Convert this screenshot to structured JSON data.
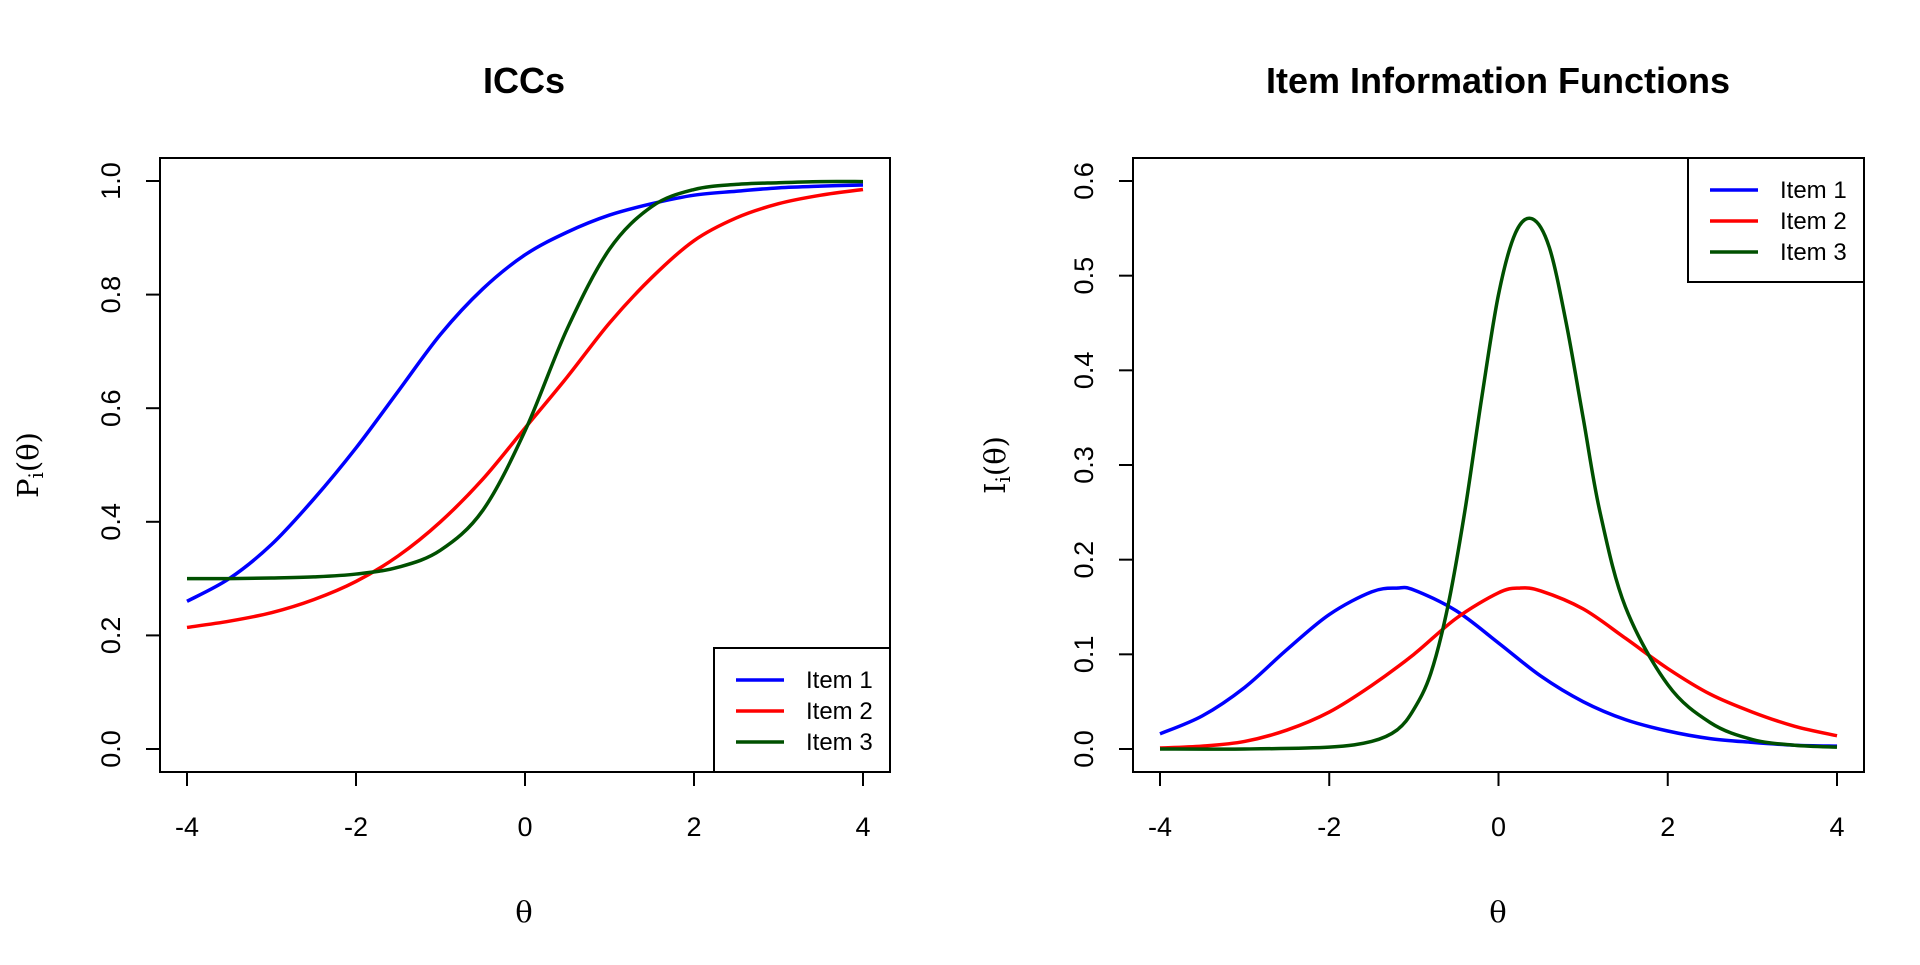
{
  "chart_data": [
    {
      "type": "line",
      "title": "ICCs",
      "xlabel": "θ",
      "ylabel": {
        "main": "P",
        "sub": "i",
        "rest": "(θ)"
      },
      "xlim": [
        -4,
        4
      ],
      "ylim": [
        0,
        1
      ],
      "xticks": [
        -4,
        -2,
        0,
        2,
        4
      ],
      "yticks": [
        0.0,
        0.2,
        0.4,
        0.6,
        0.8,
        1.0
      ],
      "xtick_labels": [
        "-4",
        "-2",
        "0",
        "2",
        "4"
      ],
      "ytick_labels": [
        "0.0",
        "0.2",
        "0.4",
        "0.6",
        "0.8",
        "1.0"
      ],
      "grid": false,
      "legend_position": "bottom-right",
      "series": [
        {
          "name": "Item 1",
          "color": "#0000ff",
          "x": [
            -4,
            -3.5,
            -3,
            -2.5,
            -2,
            -1.5,
            -1,
            -0.5,
            0,
            0.5,
            1,
            1.5,
            2,
            2.5,
            3,
            3.5,
            4
          ],
          "y": [
            0.26,
            0.3,
            0.36,
            0.44,
            0.53,
            0.63,
            0.73,
            0.81,
            0.87,
            0.91,
            0.94,
            0.96,
            0.975,
            0.982,
            0.988,
            0.991,
            0.993
          ]
        },
        {
          "name": "Item 2",
          "color": "#ff0000",
          "x": [
            -4,
            -3.5,
            -3,
            -2.5,
            -2,
            -1.5,
            -1,
            -0.5,
            0,
            0.5,
            1,
            1.5,
            2,
            2.5,
            3,
            3.5,
            4
          ],
          "y": [
            0.214,
            0.225,
            0.24,
            0.263,
            0.295,
            0.34,
            0.4,
            0.475,
            0.565,
            0.655,
            0.75,
            0.83,
            0.895,
            0.935,
            0.96,
            0.975,
            0.985
          ]
        },
        {
          "name": "Item 3",
          "color": "#005000",
          "x": [
            -4,
            -3.5,
            -3,
            -2.5,
            -2,
            -1.5,
            -1,
            -0.5,
            0,
            0.5,
            1,
            1.5,
            2,
            2.5,
            3,
            3.5,
            4
          ],
          "y": [
            0.3,
            0.3,
            0.301,
            0.303,
            0.308,
            0.32,
            0.35,
            0.42,
            0.56,
            0.74,
            0.88,
            0.955,
            0.985,
            0.994,
            0.997,
            0.999,
            0.999
          ]
        }
      ]
    },
    {
      "type": "line",
      "title": "Item Information Functions",
      "xlabel": "θ",
      "ylabel": {
        "main": "I",
        "sub": "i",
        "rest": "(θ)"
      },
      "xlim": [
        -4,
        4
      ],
      "ylim": [
        0,
        0.6
      ],
      "xticks": [
        -4,
        -2,
        0,
        2,
        4
      ],
      "yticks": [
        0.0,
        0.1,
        0.2,
        0.3,
        0.4,
        0.5,
        0.6
      ],
      "xtick_labels": [
        "-4",
        "-2",
        "0",
        "2",
        "4"
      ],
      "ytick_labels": [
        "0.0",
        "0.1",
        "0.2",
        "0.3",
        "0.4",
        "0.5",
        "0.6"
      ],
      "grid": false,
      "legend_position": "top-right",
      "series": [
        {
          "name": "Item 1",
          "color": "#0000ff",
          "x": [
            -4,
            -3.5,
            -3,
            -2.5,
            -2,
            -1.5,
            -1.2,
            -1,
            -0.5,
            0,
            0.5,
            1,
            1.5,
            2,
            2.5,
            3,
            3.5,
            4
          ],
          "y": [
            0.016,
            0.035,
            0.065,
            0.105,
            0.142,
            0.166,
            0.17,
            0.168,
            0.146,
            0.112,
            0.077,
            0.05,
            0.031,
            0.019,
            0.011,
            0.007,
            0.004,
            0.003
          ]
        },
        {
          "name": "Item 2",
          "color": "#ff0000",
          "x": [
            -4,
            -3.5,
            -3,
            -2.5,
            -2,
            -1.5,
            -1,
            -0.5,
            0,
            0.25,
            0.5,
            1,
            1.5,
            2,
            2.5,
            3,
            3.5,
            4
          ],
          "y": [
            0.001,
            0.003,
            0.008,
            0.02,
            0.039,
            0.067,
            0.1,
            0.138,
            0.165,
            0.17,
            0.167,
            0.148,
            0.117,
            0.085,
            0.058,
            0.039,
            0.024,
            0.014
          ]
        },
        {
          "name": "Item 3",
          "color": "#005000",
          "x": [
            -4,
            -3,
            -2,
            -1.5,
            -1.2,
            -1,
            -0.8,
            -0.6,
            -0.4,
            -0.2,
            0,
            0.2,
            0.4,
            0.6,
            0.8,
            1,
            1.2,
            1.5,
            2,
            2.5,
            3,
            3.5,
            4
          ],
          "y": [
            0.0,
            0.0,
            0.002,
            0.008,
            0.02,
            0.042,
            0.08,
            0.15,
            0.25,
            0.37,
            0.48,
            0.545,
            0.56,
            0.53,
            0.45,
            0.35,
            0.25,
            0.15,
            0.068,
            0.028,
            0.01,
            0.004,
            0.002
          ]
        }
      ]
    }
  ]
}
